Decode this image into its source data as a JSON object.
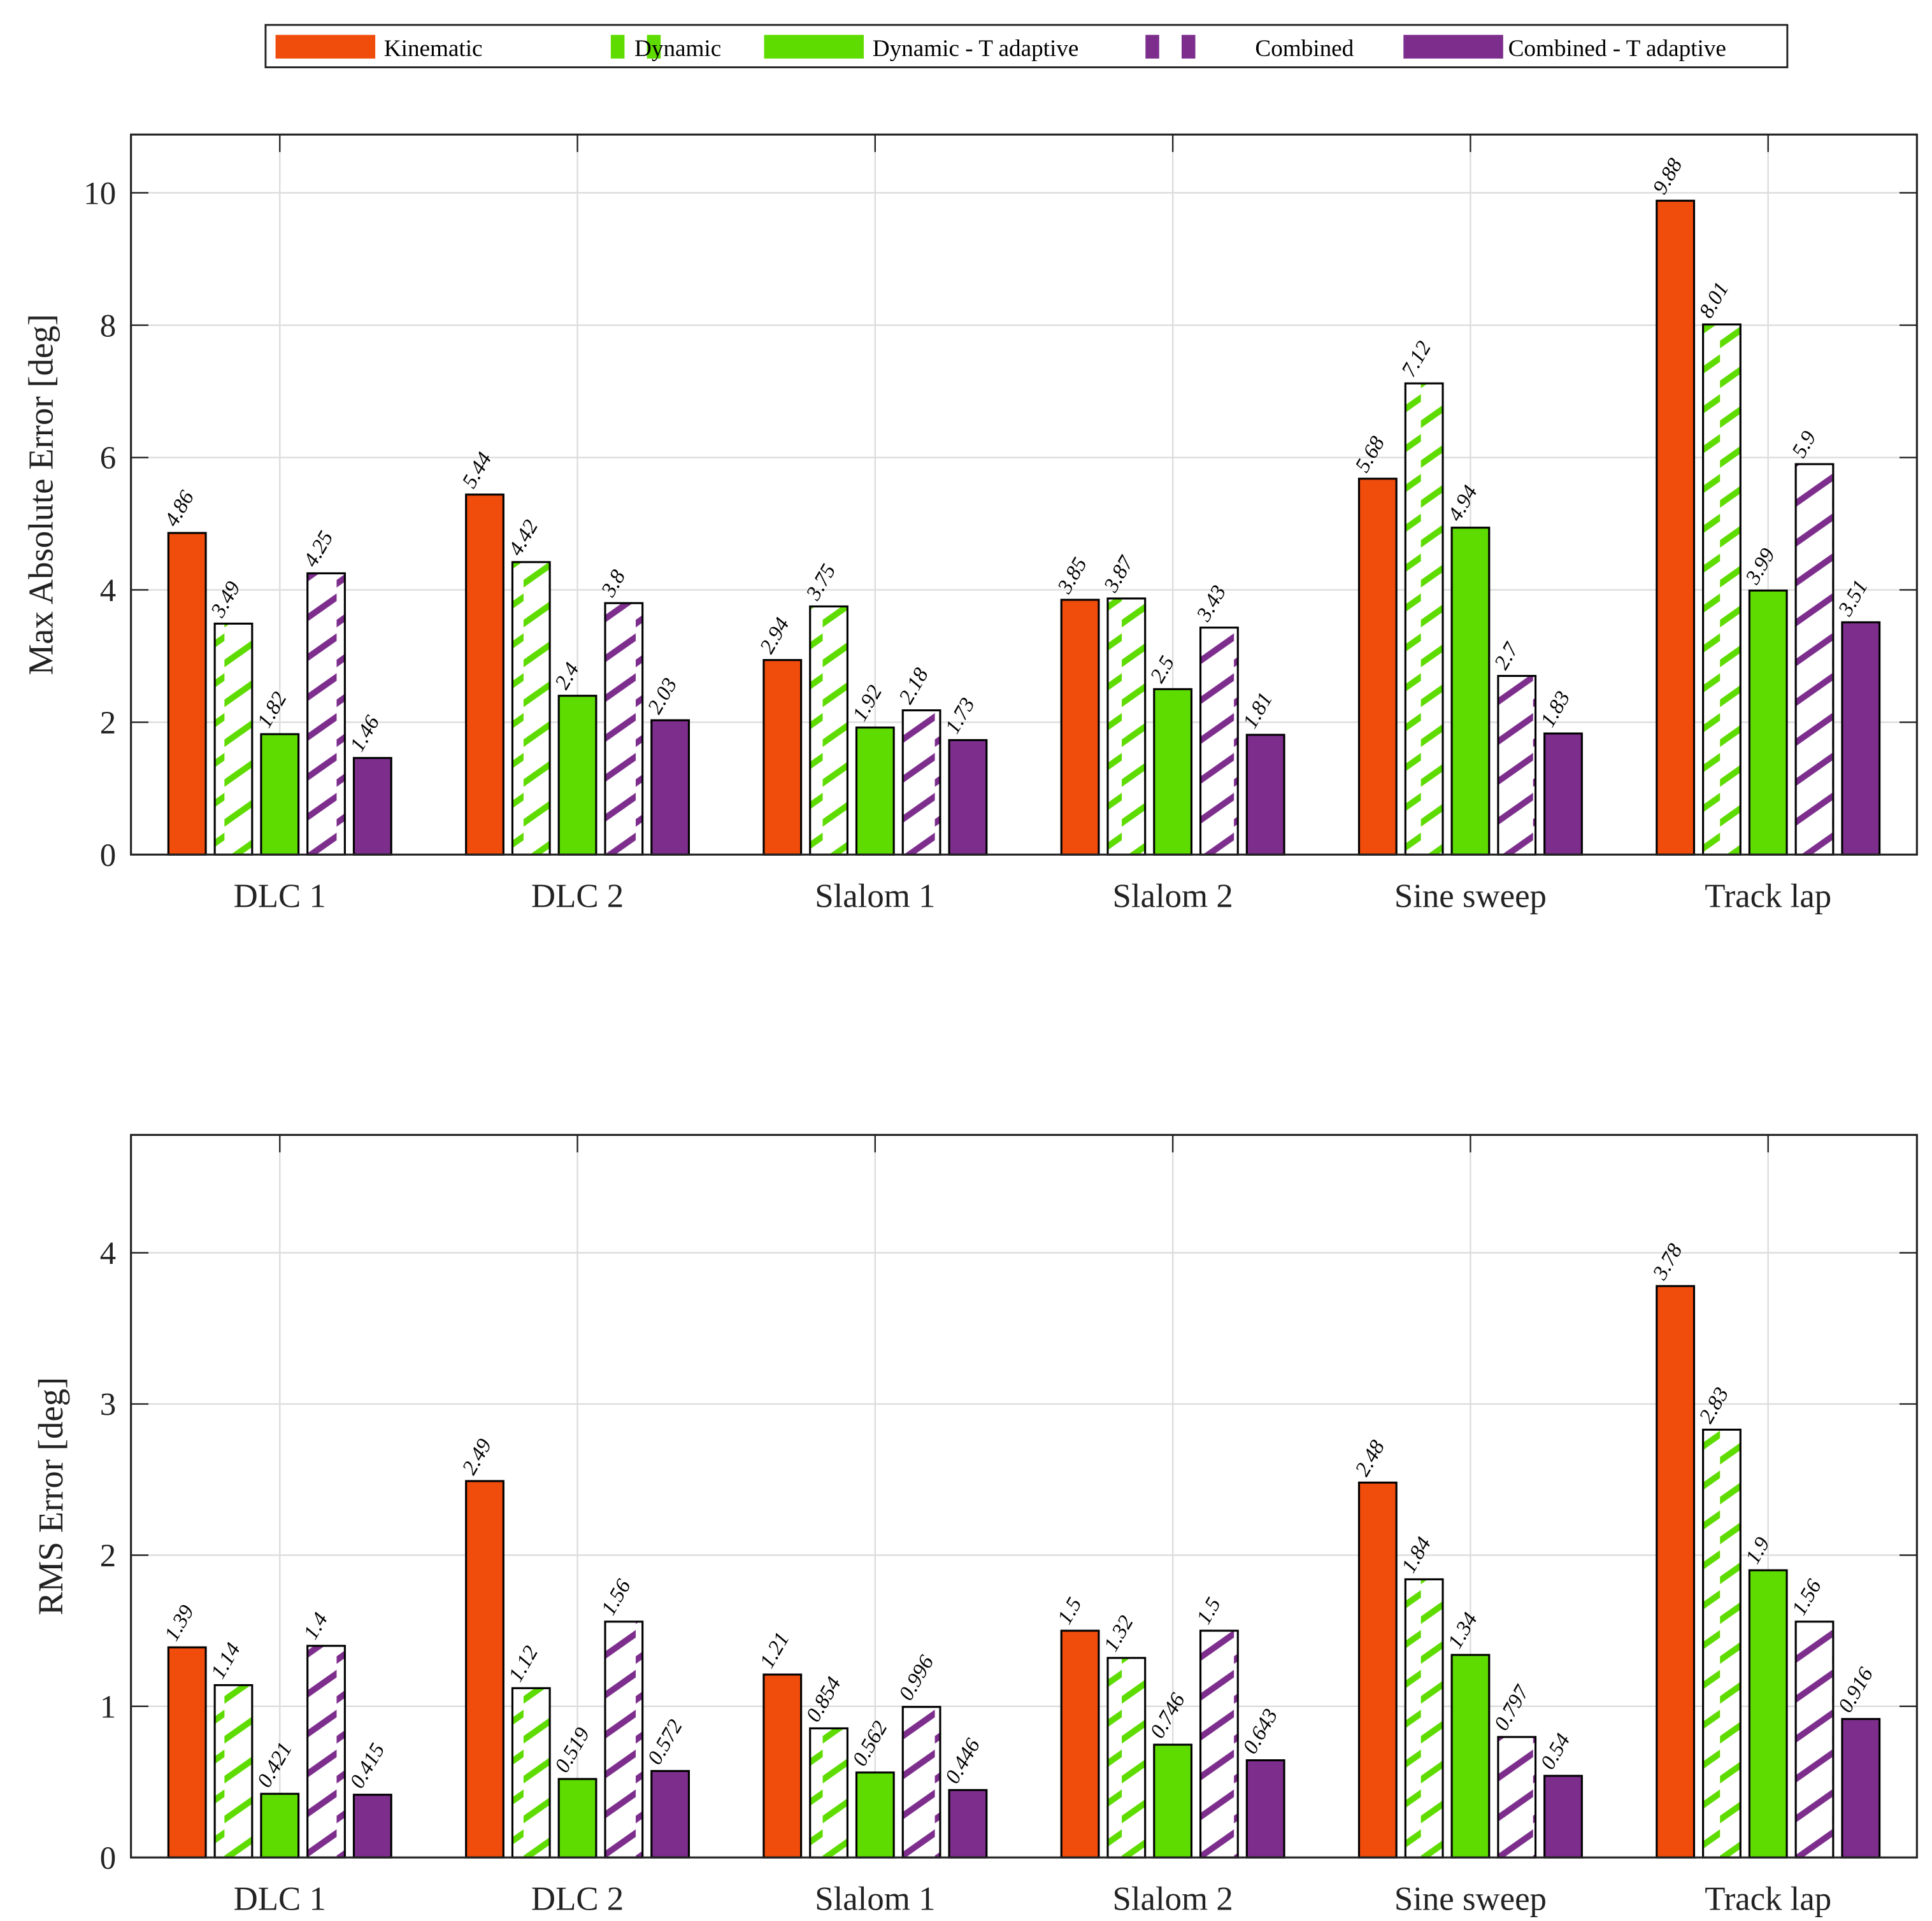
{
  "legend": {
    "entries": [
      "Kinematic",
      "Dynamic",
      "Dynamic - T adaptive",
      "Combined",
      "Combined - T adaptive"
    ]
  },
  "colors": {
    "kinematic": "#f04c0c",
    "dynamic": "#5edc00",
    "combined": "#7d2e8d",
    "grid": "#dcdcdc"
  },
  "chart_data": [
    {
      "type": "bar",
      "ylabel": "Max Absolute Error [deg]",
      "xlabel": "",
      "ylim": [
        0,
        10.88
      ],
      "yticks": [
        0,
        2,
        4,
        6,
        8,
        10
      ],
      "grid": true,
      "legend_placement": "top-center",
      "categories": [
        "DLC 1",
        "DLC 2",
        "Slalom 1",
        "Slalom 2",
        "Sine sweep",
        "Track lap"
      ],
      "series": [
        {
          "name": "Kinematic",
          "style": "solid",
          "color": "#f04c0c",
          "values": [
            4.86,
            5.44,
            2.94,
            3.85,
            5.68,
            9.88
          ],
          "labels": [
            "4.86",
            "5.44",
            "2.94",
            "3.85",
            "5.68",
            "9.88"
          ]
        },
        {
          "name": "Dynamic",
          "style": "hatched",
          "color": "#5edc00",
          "values": [
            3.49,
            4.42,
            3.75,
            3.87,
            7.12,
            8.01
          ],
          "labels": [
            "3.49",
            "4.42",
            "3.75",
            "3.87",
            "7.12",
            "8.01"
          ]
        },
        {
          "name": "Dynamic - T adaptive",
          "style": "solid",
          "color": "#5edc00",
          "values": [
            1.82,
            2.4,
            1.92,
            2.5,
            4.94,
            3.99
          ],
          "labels": [
            "1.82",
            "2.4",
            "1.92",
            "2.5",
            "4.94",
            "3.99"
          ]
        },
        {
          "name": "Combined",
          "style": "hatched",
          "color": "#7d2e8d",
          "values": [
            4.25,
            3.8,
            2.18,
            3.43,
            2.7,
            5.9
          ],
          "labels": [
            "4.25",
            "3.8",
            "2.18",
            "3.43",
            "2.7",
            "5.9"
          ]
        },
        {
          "name": "Combined - T adaptive",
          "style": "solid",
          "color": "#7d2e8d",
          "values": [
            1.46,
            2.03,
            1.73,
            1.81,
            1.83,
            3.51
          ],
          "labels": [
            "1.46",
            "2.03",
            "1.73",
            "1.81",
            "1.83",
            "3.51"
          ]
        }
      ]
    },
    {
      "type": "bar",
      "ylabel": "RMS Error [deg]",
      "xlabel": "",
      "ylim": [
        0,
        4.78
      ],
      "yticks": [
        0,
        1,
        2,
        3,
        4
      ],
      "grid": true,
      "categories": [
        "DLC 1",
        "DLC 2",
        "Slalom 1",
        "Slalom 2",
        "Sine sweep",
        "Track lap"
      ],
      "series": [
        {
          "name": "Kinematic",
          "style": "solid",
          "color": "#f04c0c",
          "values": [
            1.39,
            2.49,
            1.21,
            1.5,
            2.48,
            3.78
          ],
          "labels": [
            "1.39",
            "2.49",
            "1.21",
            "1.5",
            "2.48",
            "3.78"
          ]
        },
        {
          "name": "Dynamic",
          "style": "hatched",
          "color": "#5edc00",
          "values": [
            1.14,
            1.12,
            0.854,
            1.32,
            1.84,
            2.83
          ],
          "labels": [
            "1.14",
            "1.12",
            "0.854",
            "1.32",
            "1.84",
            "2.83"
          ]
        },
        {
          "name": "Dynamic - T adaptive",
          "style": "solid",
          "color": "#5edc00",
          "values": [
            0.421,
            0.519,
            0.562,
            0.746,
            1.34,
            1.9
          ],
          "labels": [
            "0.421",
            "0.519",
            "0.562",
            "0.746",
            "1.34",
            "1.9"
          ]
        },
        {
          "name": "Combined",
          "style": "hatched",
          "color": "#7d2e8d",
          "values": [
            1.4,
            1.56,
            0.996,
            1.5,
            0.797,
            1.56
          ],
          "labels": [
            "1.4",
            "1.56",
            "0.996",
            "1.5",
            "0.797",
            "1.56"
          ]
        },
        {
          "name": "Combined - T adaptive",
          "style": "solid",
          "color": "#7d2e8d",
          "values": [
            0.415,
            0.572,
            0.446,
            0.643,
            0.54,
            0.916
          ],
          "labels": [
            "0.415",
            "0.572",
            "0.446",
            "0.643",
            "0.54",
            "0.916"
          ]
        }
      ]
    }
  ]
}
